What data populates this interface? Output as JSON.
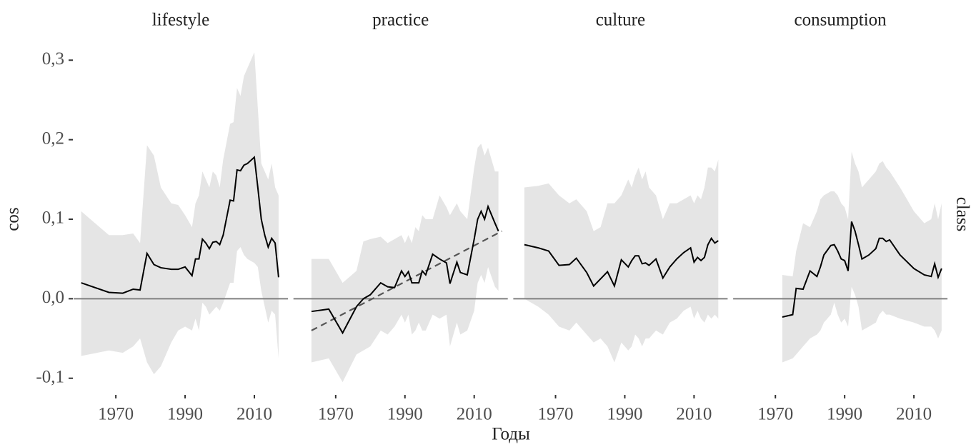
{
  "chart_data": [
    {
      "type": "line",
      "title": "lifestyle",
      "y_label": "cos",
      "x": [
        1960,
        1968,
        1972,
        1975,
        1977,
        1979,
        1981,
        1983,
        1986,
        1988,
        1990,
        1992,
        1993,
        1994,
        1995,
        1996,
        1997,
        1998,
        1999,
        2000,
        2001,
        2003,
        2004,
        2005,
        2006,
        2007,
        2008,
        2010,
        2011,
        2012,
        2013,
        2014,
        2015,
        2016,
        2017
      ],
      "values": [
        0.02,
        0.008,
        0.007,
        0.012,
        0.011,
        0.057,
        0.043,
        0.039,
        0.037,
        0.037,
        0.04,
        0.029,
        0.05,
        0.05,
        0.075,
        0.07,
        0.063,
        0.071,
        0.072,
        0.068,
        0.08,
        0.124,
        0.123,
        0.162,
        0.161,
        0.168,
        0.17,
        0.178,
        0.14,
        0.1,
        0.08,
        0.065,
        0.076,
        0.07,
        0.027
      ],
      "upper": [
        0.11,
        0.08,
        0.08,
        0.082,
        0.07,
        0.193,
        0.18,
        0.14,
        0.12,
        0.118,
        0.105,
        0.09,
        0.12,
        0.13,
        0.16,
        0.15,
        0.14,
        0.16,
        0.155,
        0.14,
        0.175,
        0.22,
        0.222,
        0.265,
        0.255,
        0.28,
        0.29,
        0.31,
        0.24,
        0.17,
        0.16,
        0.15,
        0.17,
        0.14,
        0.13
      ],
      "lower": [
        -0.072,
        -0.065,
        -0.068,
        -0.06,
        -0.05,
        -0.08,
        -0.095,
        -0.085,
        -0.055,
        -0.04,
        -0.035,
        -0.04,
        -0.025,
        -0.04,
        -0.005,
        -0.01,
        -0.02,
        -0.015,
        -0.01,
        -0.015,
        -0.005,
        0.02,
        0.02,
        0.06,
        0.065,
        0.055,
        0.05,
        0.045,
        0.04,
        0.01,
        -0.01,
        -0.03,
        -0.015,
        -0.02,
        -0.075
      ],
      "color": "#000000",
      "ribbon_color": "#e5e5e5",
      "hline": 0,
      "hline_color": "#808080",
      "xlim": [
        1957.8,
        2019.7
      ],
      "xticks": [
        1970,
        1990,
        2010
      ],
      "ylim": [
        -0.12,
        0.32
      ],
      "yticks": [
        {
          "value": -0.1,
          "label": "-0,1"
        },
        {
          "value": 0,
          "label": "0,0"
        },
        {
          "value": 0.1,
          "label": "0,1"
        },
        {
          "value": 0.2,
          "label": "0,2"
        },
        {
          "value": 0.3,
          "label": "0,3"
        }
      ]
    },
    {
      "type": "line",
      "title": "practice",
      "x": [
        1963,
        1968,
        1972,
        1976,
        1978,
        1980,
        1983,
        1985,
        1987,
        1989,
        1990,
        1991,
        1992,
        1993,
        1994,
        1995,
        1996,
        1998,
        2000,
        2002,
        2003,
        2005,
        2006,
        2008,
        2010,
        2011,
        2012,
        2013,
        2014,
        2016,
        2017
      ],
      "values": [
        -0.016,
        -0.013,
        -0.043,
        -0.01,
        0.0,
        0.005,
        0.02,
        0.015,
        0.014,
        0.035,
        0.028,
        0.034,
        0.02,
        0.02,
        0.02,
        0.035,
        0.03,
        0.056,
        0.05,
        0.045,
        0.019,
        0.046,
        0.033,
        0.03,
        0.075,
        0.1,
        0.11,
        0.1,
        0.116,
        0.095,
        0.085
      ],
      "upper": [
        0.05,
        0.05,
        0.02,
        0.035,
        0.072,
        0.075,
        0.078,
        0.07,
        0.075,
        0.08,
        0.07,
        0.08,
        0.07,
        0.09,
        0.085,
        0.105,
        0.1,
        0.1,
        0.13,
        0.115,
        0.105,
        0.12,
        0.11,
        0.1,
        0.165,
        0.19,
        0.195,
        0.18,
        0.19,
        0.16,
        0.16
      ],
      "lower": [
        -0.08,
        -0.075,
        -0.105,
        -0.07,
        -0.065,
        -0.06,
        -0.04,
        -0.045,
        -0.035,
        -0.02,
        -0.03,
        -0.02,
        -0.045,
        -0.04,
        -0.03,
        -0.04,
        -0.04,
        -0.02,
        -0.025,
        -0.02,
        -0.06,
        -0.03,
        -0.045,
        -0.04,
        -0.015,
        0.02,
        0.03,
        0.02,
        0.04,
        0.015,
        0.01
      ],
      "trend": {
        "x": [
          1963,
          2018
        ],
        "values": [
          -0.04,
          0.085
        ],
        "color": "#555555"
      },
      "color": "#000000",
      "ribbon_color": "#e5e5e5",
      "hline": 0,
      "hline_color": "#808080",
      "xlim": [
        1957.8,
        2019.7
      ],
      "xticks": [
        1970,
        1990,
        2010
      ],
      "ylim": [
        -0.12,
        0.32
      ]
    },
    {
      "type": "line",
      "title": "culture",
      "x": [
        1961,
        1965,
        1968,
        1971,
        1974,
        1976,
        1979,
        1981,
        1983,
        1985,
        1987,
        1989,
        1991,
        1992,
        1993,
        1994,
        1995,
        1996,
        1997,
        1999,
        2001,
        2003,
        2005,
        2007,
        2009,
        2010,
        2011,
        2012,
        2013,
        2014,
        2015,
        2016,
        2017
      ],
      "values": [
        0.068,
        0.064,
        0.06,
        0.042,
        0.043,
        0.051,
        0.033,
        0.016,
        0.025,
        0.034,
        0.016,
        0.049,
        0.04,
        0.048,
        0.054,
        0.054,
        0.044,
        0.045,
        0.042,
        0.05,
        0.026,
        0.04,
        0.05,
        0.058,
        0.064,
        0.046,
        0.052,
        0.048,
        0.052,
        0.068,
        0.076,
        0.07,
        0.073
      ],
      "upper": [
        0.14,
        0.142,
        0.145,
        0.13,
        0.12,
        0.125,
        0.11,
        0.085,
        0.09,
        0.12,
        0.12,
        0.13,
        0.15,
        0.14,
        0.155,
        0.165,
        0.15,
        0.16,
        0.14,
        0.13,
        0.1,
        0.12,
        0.12,
        0.125,
        0.13,
        0.12,
        0.13,
        0.125,
        0.14,
        0.165,
        0.165,
        0.16,
        0.175
      ],
      "lower": [
        0,
        -0.01,
        -0.02,
        -0.035,
        -0.04,
        -0.03,
        -0.045,
        -0.055,
        -0.05,
        -0.06,
        -0.08,
        -0.055,
        -0.065,
        -0.06,
        -0.045,
        -0.05,
        -0.06,
        -0.05,
        -0.05,
        -0.04,
        -0.045,
        -0.03,
        -0.025,
        -0.015,
        -0.01,
        -0.025,
        -0.015,
        -0.025,
        -0.03,
        -0.02,
        -0.025,
        -0.02,
        -0.025
      ],
      "color": "#000000",
      "ribbon_color": "#e5e5e5",
      "hline": 0,
      "hline_color": "#808080",
      "xlim": [
        1957.8,
        2019.7
      ],
      "xticks": [
        1970,
        1990,
        2010
      ],
      "ylim": [
        -0.12,
        0.32
      ]
    },
    {
      "type": "line",
      "title": "consumption",
      "x": [
        1972,
        1975,
        1976,
        1978,
        1980,
        1982,
        1983,
        1984,
        1986,
        1987,
        1988,
        1989,
        1990,
        1991,
        1992,
        1993,
        1994,
        1995,
        1997,
        1999,
        2000,
        2001,
        2002,
        2003,
        2006,
        2010,
        2013,
        2015,
        2016,
        2017,
        2018
      ],
      "values": [
        -0.023,
        -0.02,
        0.013,
        0.012,
        0.035,
        0.028,
        0.04,
        0.055,
        0.067,
        0.068,
        0.06,
        0.05,
        0.048,
        0.035,
        0.097,
        0.085,
        0.068,
        0.05,
        0.055,
        0.063,
        0.076,
        0.076,
        0.072,
        0.074,
        0.055,
        0.038,
        0.03,
        0.028,
        0.044,
        0.027,
        0.038
      ],
      "upper": [
        0.03,
        0.028,
        0.06,
        0.095,
        0.09,
        0.11,
        0.125,
        0.13,
        0.135,
        0.135,
        0.13,
        0.12,
        0.115,
        0.1,
        0.185,
        0.17,
        0.16,
        0.14,
        0.15,
        0.16,
        0.17,
        0.173,
        0.165,
        0.16,
        0.14,
        0.11,
        0.095,
        0.1,
        0.12,
        0.1,
        0.12
      ],
      "lower": [
        -0.08,
        -0.075,
        -0.07,
        -0.06,
        -0.05,
        -0.045,
        -0.04,
        -0.03,
        -0.02,
        -0.005,
        -0.02,
        -0.03,
        -0.025,
        -0.035,
        0.015,
        0.005,
        -0.01,
        -0.04,
        -0.035,
        -0.03,
        -0.02,
        -0.015,
        -0.02,
        -0.02,
        -0.025,
        -0.03,
        -0.035,
        -0.035,
        -0.04,
        -0.05,
        -0.04
      ],
      "color": "#000000",
      "ribbon_color": "#e5e5e5",
      "hline": 0,
      "hline_color": "#808080",
      "xlim": [
        1957.8,
        2019.7
      ],
      "xticks": [
        1970,
        1990,
        2010
      ],
      "ylim": [
        -0.12,
        0.32
      ]
    }
  ],
  "x_label": "Годы",
  "facet_label": "class"
}
